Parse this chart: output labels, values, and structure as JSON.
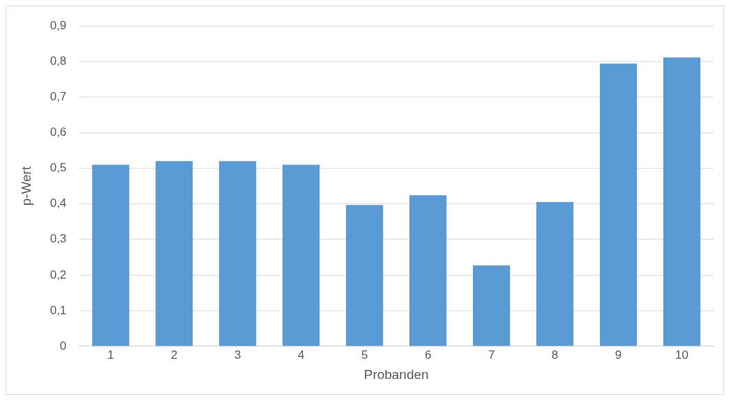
{
  "chart_data": {
    "type": "bar",
    "xlabel": "Probanden",
    "ylabel": "p-Wert",
    "categories": [
      "1",
      "2",
      "3",
      "4",
      "5",
      "6",
      "7",
      "8",
      "9",
      "10"
    ],
    "values": [
      0.51,
      0.52,
      0.52,
      0.51,
      0.397,
      0.424,
      0.227,
      0.405,
      0.794,
      0.811
    ],
    "color": "#5b9bd5",
    "ylim": [
      0,
      0.9
    ],
    "yticks": [
      {
        "value": 0,
        "label": "0"
      },
      {
        "value": 0.1,
        "label": "0,1"
      },
      {
        "value": 0.2,
        "label": "0,2"
      },
      {
        "value": 0.3,
        "label": "0,3"
      },
      {
        "value": 0.4,
        "label": "0,4"
      },
      {
        "value": 0.5,
        "label": "0,5"
      },
      {
        "value": 0.6,
        "label": "0,6"
      },
      {
        "value": 0.7,
        "label": "0,7"
      },
      {
        "value": 0.8,
        "label": "0,8"
      },
      {
        "value": 0.9,
        "label": "0,9"
      }
    ],
    "grid": "y",
    "legend": false
  }
}
